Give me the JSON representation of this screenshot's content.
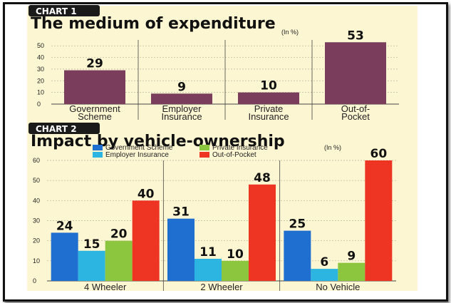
{
  "chart_data": [
    {
      "type": "bar",
      "tag": "CHART 1",
      "title": "The medium of expenditure",
      "unit": "(In %)",
      "categories": [
        [
          "Government",
          "Scheme"
        ],
        [
          "Employer",
          "Insurance"
        ],
        [
          "Private",
          "Insurance"
        ],
        [
          "Out-of-",
          "Pocket"
        ]
      ],
      "values": [
        29,
        9,
        10,
        53
      ],
      "ylim": [
        0,
        55
      ],
      "yticks": [
        0,
        10,
        20,
        30,
        40,
        50
      ],
      "color": "#7b3d5c"
    },
    {
      "type": "bar",
      "tag": "CHART 2",
      "title": "Impact by vehicle-ownership",
      "unit": "(In %)",
      "categories": [
        "4 Wheeler",
        "2 Wheeler",
        "No Vehicle"
      ],
      "series": [
        {
          "name": "Government Scheme",
          "values": [
            24,
            31,
            25
          ],
          "color": "#1e6fd0"
        },
        {
          "name": "Employer Insurance",
          "values": [
            15,
            11,
            6
          ],
          "color": "#2bb5e0"
        },
        {
          "name": "Private Insurance",
          "values": [
            20,
            10,
            9
          ],
          "color": "#8cc63f"
        },
        {
          "name": "Out-of-Pocket",
          "values": [
            40,
            48,
            60
          ],
          "color": "#ee3524"
        }
      ],
      "legend_order": [
        0,
        2,
        1,
        3
      ],
      "ylim": [
        0,
        60
      ],
      "yticks": [
        0,
        10,
        20,
        30,
        40,
        50,
        60
      ]
    }
  ]
}
